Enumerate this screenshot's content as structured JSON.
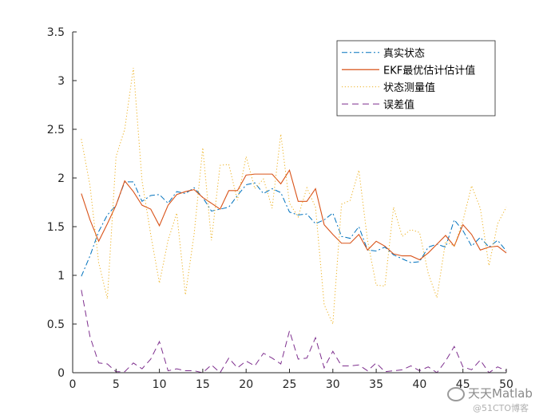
{
  "chart_data": {
    "type": "line",
    "title": "",
    "xlabel": "",
    "ylabel": "",
    "xlim": [
      0,
      50
    ],
    "ylim": [
      0,
      3.5
    ],
    "xticks": [
      0,
      5,
      10,
      15,
      20,
      25,
      30,
      35,
      40,
      45,
      50
    ],
    "xtick_labels": [
      "0",
      "5",
      "10",
      "15",
      "20",
      "25",
      "30",
      "35",
      "40",
      "45",
      "50"
    ],
    "yticks": [
      0,
      0.5,
      1,
      1.5,
      2,
      2.5,
      3,
      3.5
    ],
    "ytick_labels": [
      "0",
      "0.5",
      "1",
      "1.5",
      "2",
      "2.5",
      "3",
      "3.5"
    ],
    "grid": false,
    "legend_position": "top-right",
    "x": [
      1,
      2,
      3,
      4,
      5,
      6,
      7,
      8,
      9,
      10,
      11,
      12,
      13,
      14,
      15,
      16,
      17,
      18,
      19,
      20,
      21,
      22,
      23,
      24,
      25,
      26,
      27,
      28,
      29,
      30,
      31,
      32,
      33,
      34,
      35,
      36,
      37,
      38,
      39,
      40,
      41,
      42,
      43,
      44,
      45,
      46,
      47,
      48,
      49,
      50
    ],
    "series": [
      {
        "name": "真实状态",
        "color": "#0072BD",
        "style": "dashdot",
        "values": [
          0.99,
          1.2,
          1.45,
          1.62,
          1.72,
          1.96,
          1.96,
          1.76,
          1.82,
          1.83,
          1.74,
          1.86,
          1.84,
          1.9,
          1.8,
          1.66,
          1.68,
          1.7,
          1.82,
          1.93,
          1.95,
          1.84,
          1.89,
          1.85,
          1.65,
          1.62,
          1.63,
          1.53,
          1.57,
          1.64,
          1.4,
          1.38,
          1.5,
          1.26,
          1.25,
          1.29,
          1.21,
          1.17,
          1.13,
          1.14,
          1.29,
          1.32,
          1.29,
          1.57,
          1.46,
          1.3,
          1.39,
          1.29,
          1.36,
          1.25
        ]
      },
      {
        "name": "EKF最优估计估计值",
        "color": "#D95319",
        "style": "solid",
        "values": [
          1.84,
          1.57,
          1.35,
          1.53,
          1.72,
          1.97,
          1.86,
          1.72,
          1.68,
          1.51,
          1.72,
          1.83,
          1.86,
          1.88,
          1.8,
          1.74,
          1.68,
          1.87,
          1.87,
          2.03,
          2.04,
          2.04,
          2.04,
          1.94,
          2.08,
          1.76,
          1.76,
          1.89,
          1.52,
          1.42,
          1.33,
          1.33,
          1.42,
          1.26,
          1.35,
          1.3,
          1.22,
          1.2,
          1.2,
          1.16,
          1.23,
          1.32,
          1.41,
          1.3,
          1.52,
          1.42,
          1.26,
          1.29,
          1.3,
          1.23
        ]
      },
      {
        "name": "状态测量值",
        "color": "#EDB120",
        "style": "dotted",
        "values": [
          2.4,
          1.92,
          1.13,
          0.76,
          2.22,
          2.5,
          3.13,
          1.97,
          1.42,
          0.92,
          1.36,
          1.64,
          0.8,
          1.42,
          2.31,
          1.36,
          2.13,
          2.14,
          1.77,
          2.22,
          1.89,
          1.99,
          1.69,
          2.45,
          1.74,
          1.6,
          1.9,
          1.7,
          0.7,
          0.5,
          1.73,
          1.77,
          2.08,
          1.36,
          0.9,
          0.89,
          1.7,
          1.4,
          1.47,
          1.44,
          1.02,
          0.77,
          1.35,
          1.3,
          1.56,
          1.92,
          1.69,
          1.1,
          1.53,
          1.7
        ]
      },
      {
        "name": "误差值",
        "color": "#7E2F8E",
        "style": "dashed",
        "values": [
          0.85,
          0.37,
          0.1,
          0.09,
          0.01,
          0.01,
          0.1,
          0.04,
          0.14,
          0.32,
          0.02,
          0.04,
          0.02,
          0.02,
          0.0,
          0.08,
          0.0,
          0.15,
          0.05,
          0.12,
          0.07,
          0.2,
          0.15,
          0.09,
          0.43,
          0.14,
          0.15,
          0.36,
          0.05,
          0.22,
          0.07,
          0.07,
          0.08,
          0.02,
          0.1,
          0.01,
          0.02,
          0.03,
          0.07,
          0.02,
          0.06,
          0.0,
          0.12,
          0.27,
          0.06,
          0.03,
          0.13,
          0.0,
          0.06,
          0.02
        ]
      }
    ]
  },
  "watermark": {
    "wechat_name": "天天Matlab",
    "site_text": "@51CTO博客"
  }
}
